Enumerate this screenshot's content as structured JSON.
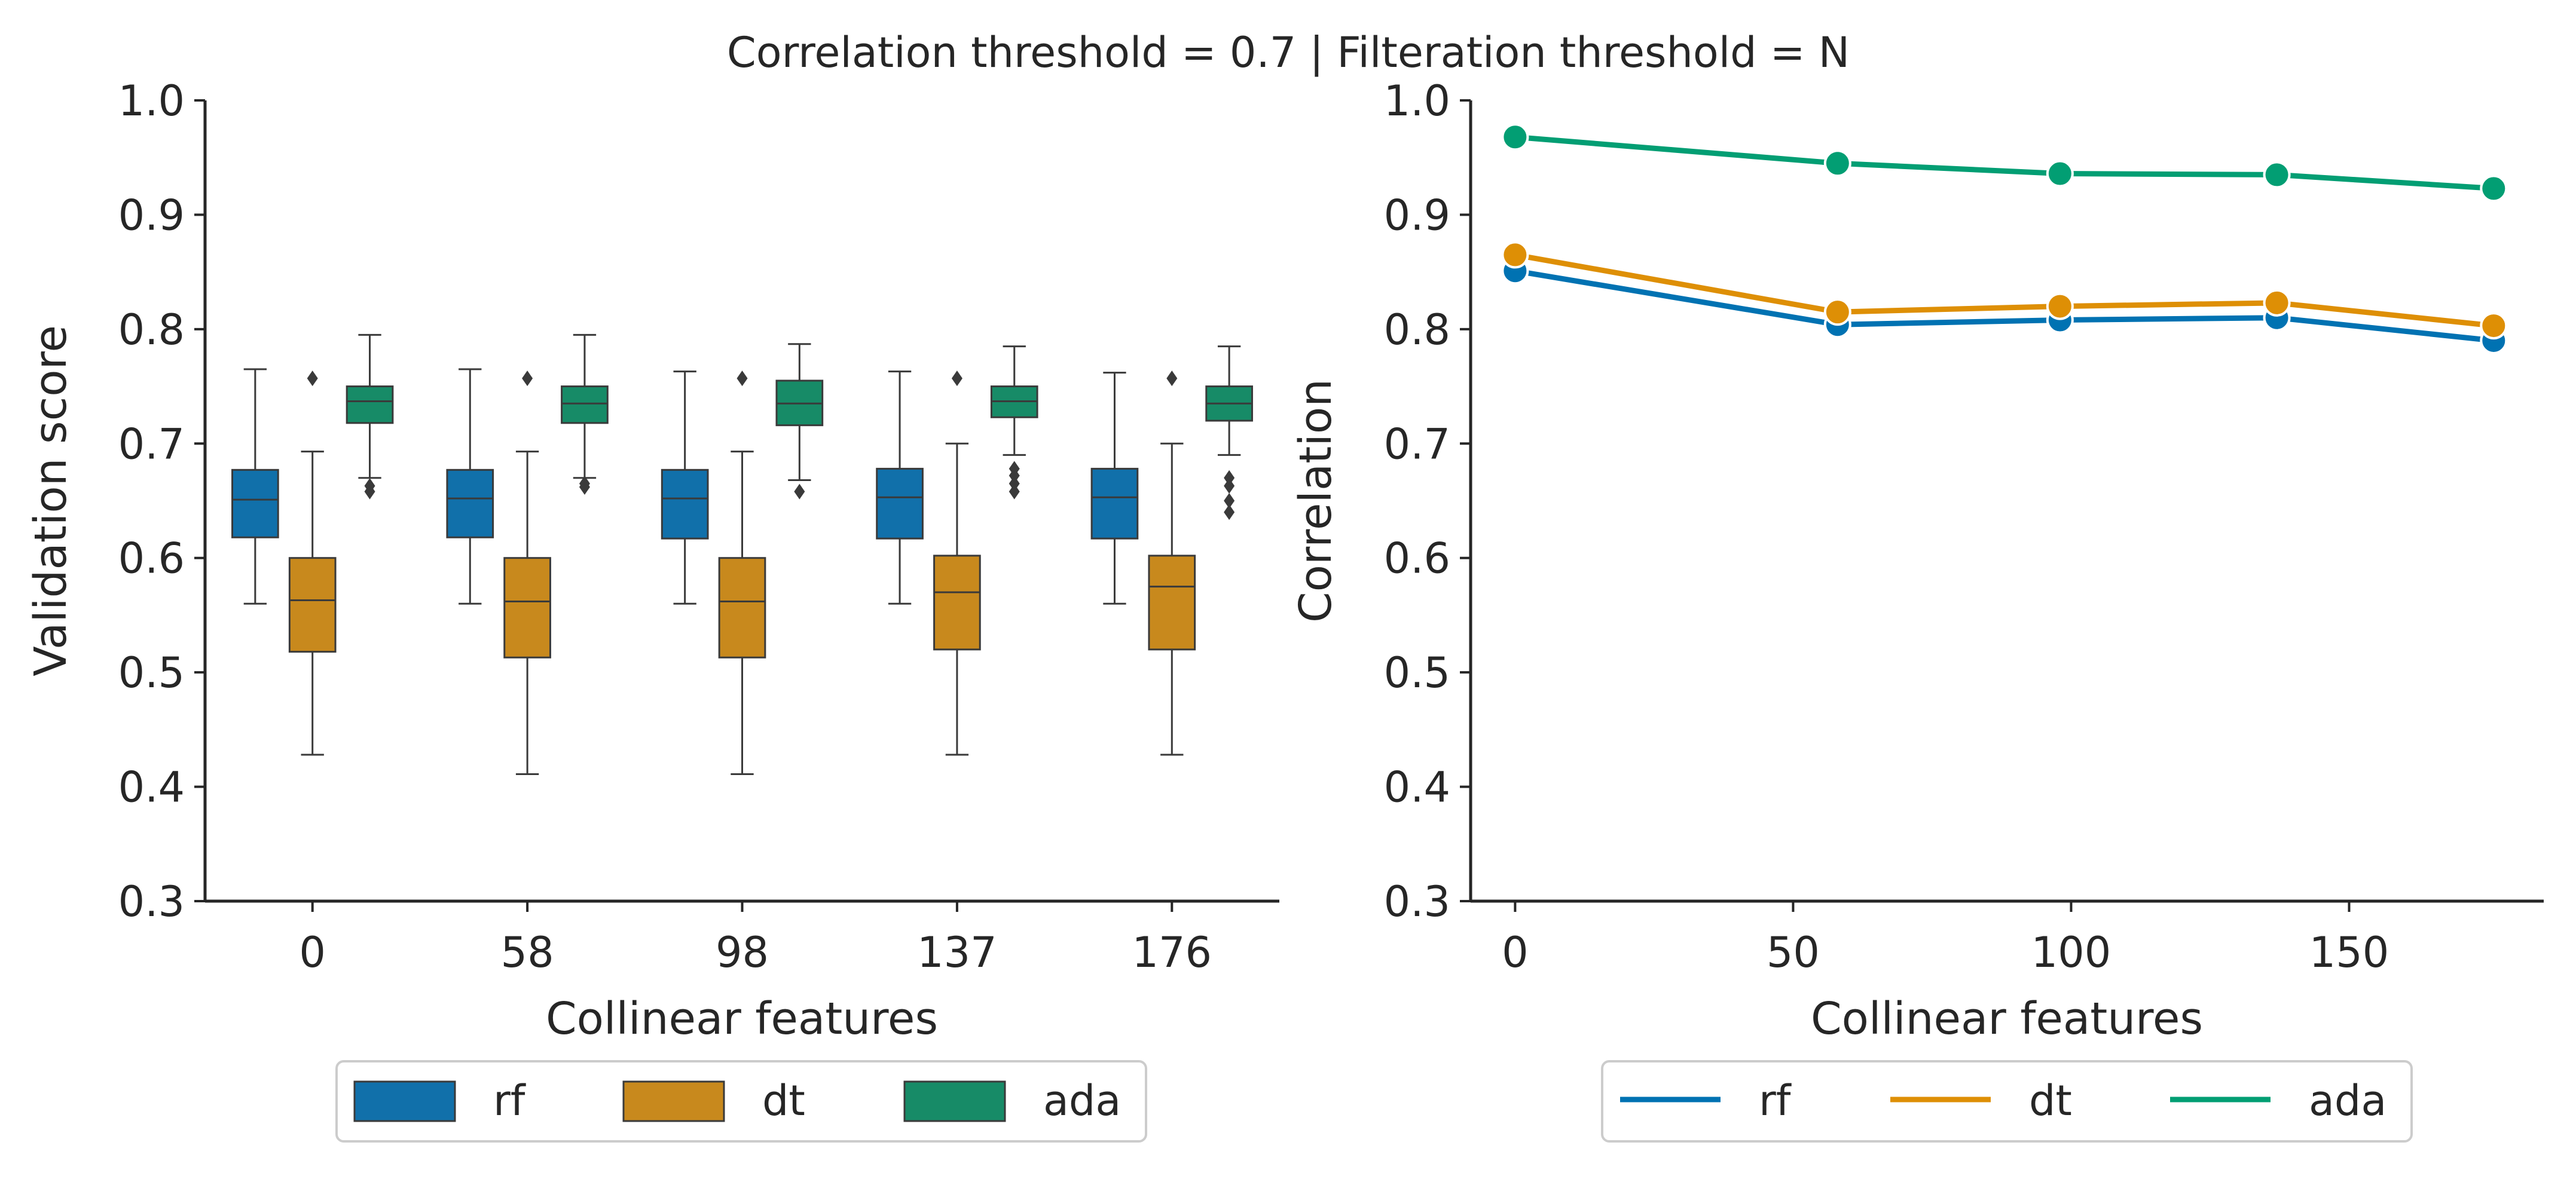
{
  "figure": {
    "suptitle": "Correlation threshold = 0.7 | Filteration threshold = N"
  },
  "colors": {
    "rf": "#0072b2",
    "dt": "#de8f05",
    "ada": "#029e73",
    "rf_box": "#1170aa",
    "dt_box": "#c8891d",
    "ada_box": "#178b67",
    "axis": "#262626"
  },
  "chart_data": [
    {
      "type": "box",
      "title": "",
      "xlabel": "Collinear features",
      "ylabel": "Validation score",
      "categories": [
        "0",
        "58",
        "98",
        "137",
        "176"
      ],
      "ylim": [
        0.3,
        1.0
      ],
      "yticks": [
        "0.3",
        "0.4",
        "0.5",
        "0.6",
        "0.7",
        "0.8",
        "0.9",
        "1.0"
      ],
      "grid": false,
      "legend_position": "below",
      "series": [
        {
          "name": "rf",
          "boxes": [
            {
              "whislo": 0.56,
              "q1": 0.618,
              "med": 0.651,
              "q3": 0.677,
              "whishi": 0.765,
              "fliers": []
            },
            {
              "whislo": 0.56,
              "q1": 0.618,
              "med": 0.652,
              "q3": 0.677,
              "whishi": 0.765,
              "fliers": []
            },
            {
              "whislo": 0.56,
              "q1": 0.617,
              "med": 0.652,
              "q3": 0.677,
              "whishi": 0.763,
              "fliers": []
            },
            {
              "whislo": 0.56,
              "q1": 0.617,
              "med": 0.653,
              "q3": 0.678,
              "whishi": 0.763,
              "fliers": []
            },
            {
              "whislo": 0.56,
              "q1": 0.617,
              "med": 0.653,
              "q3": 0.678,
              "whishi": 0.762,
              "fliers": []
            }
          ]
        },
        {
          "name": "dt",
          "boxes": [
            {
              "whislo": 0.428,
              "q1": 0.518,
              "med": 0.563,
              "q3": 0.6,
              "whishi": 0.693,
              "fliers": [
                0.757
              ]
            },
            {
              "whislo": 0.411,
              "q1": 0.513,
              "med": 0.562,
              "q3": 0.6,
              "whishi": 0.693,
              "fliers": [
                0.757
              ]
            },
            {
              "whislo": 0.411,
              "q1": 0.513,
              "med": 0.562,
              "q3": 0.6,
              "whishi": 0.693,
              "fliers": [
                0.757
              ]
            },
            {
              "whislo": 0.428,
              "q1": 0.52,
              "med": 0.57,
              "q3": 0.602,
              "whishi": 0.7,
              "fliers": [
                0.757
              ]
            },
            {
              "whislo": 0.428,
              "q1": 0.52,
              "med": 0.575,
              "q3": 0.602,
              "whishi": 0.7,
              "fliers": [
                0.757
              ]
            }
          ]
        },
        {
          "name": "ada",
          "boxes": [
            {
              "whislo": 0.67,
              "q1": 0.718,
              "med": 0.737,
              "q3": 0.75,
              "whishi": 0.795,
              "fliers": [
                0.663,
                0.658
              ]
            },
            {
              "whislo": 0.67,
              "q1": 0.718,
              "med": 0.735,
              "q3": 0.75,
              "whishi": 0.795,
              "fliers": [
                0.665,
                0.662
              ]
            },
            {
              "whislo": 0.668,
              "q1": 0.716,
              "med": 0.735,
              "q3": 0.755,
              "whishi": 0.787,
              "fliers": [
                0.658
              ]
            },
            {
              "whislo": 0.69,
              "q1": 0.723,
              "med": 0.737,
              "q3": 0.75,
              "whishi": 0.785,
              "fliers": [
                0.678,
                0.672,
                0.665,
                0.658
              ]
            },
            {
              "whislo": 0.69,
              "q1": 0.72,
              "med": 0.735,
              "q3": 0.75,
              "whishi": 0.785,
              "fliers": [
                0.67,
                0.663,
                0.65,
                0.64
              ]
            }
          ]
        }
      ]
    },
    {
      "type": "line",
      "title": "",
      "xlabel": "Collinear features",
      "ylabel": "Correlation",
      "x": [
        0,
        58,
        98,
        137,
        176
      ],
      "xlim": [
        -8,
        185
      ],
      "ylim": [
        0.3,
        1.0
      ],
      "xticks": [
        "0",
        "50",
        "100",
        "150"
      ],
      "xtick_values": [
        0,
        50,
        100,
        150
      ],
      "yticks": [
        "0.3",
        "0.4",
        "0.5",
        "0.6",
        "0.7",
        "0.8",
        "0.9",
        "1.0"
      ],
      "grid": false,
      "legend_position": "below",
      "series": [
        {
          "name": "rf",
          "values": [
            0.851,
            0.804,
            0.808,
            0.81,
            0.79
          ]
        },
        {
          "name": "dt",
          "values": [
            0.865,
            0.815,
            0.82,
            0.823,
            0.803
          ]
        },
        {
          "name": "ada",
          "values": [
            0.968,
            0.945,
            0.936,
            0.935,
            0.923
          ]
        }
      ]
    }
  ]
}
